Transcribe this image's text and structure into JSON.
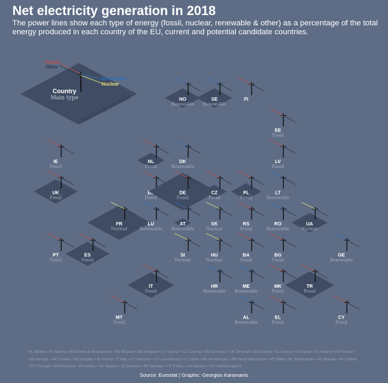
{
  "title": "Net electricity generation in 2018",
  "subtitle": "The power lines show each type of energy (fossil, nuclear, renewable & other) as a percentage of the total energy produced in each country of the EU, current and potential candidate countries.",
  "colors": {
    "background": "#5e6c85",
    "diamond": "#3f4c63",
    "fossil": "#c0504d",
    "other": "#2e3b4e",
    "renewable": "#2f6fb6",
    "nuclear": "#e6e07a",
    "text": "#ffffff",
    "muted": "#a7b1c2"
  },
  "legend": {
    "fossil": "Fossil",
    "other": "Other",
    "renewable": "Renewable",
    "nuclear": "Nuclear",
    "country": "Country",
    "main_type": "Main type",
    "total": "Total energy produced"
  },
  "chart_data": {
    "type": "scatter",
    "title": "Net electricity generation in 2018",
    "series": [
      "Fossil",
      "Nuclear",
      "Renewable",
      "Other"
    ],
    "countries": [
      {
        "code": "NO",
        "main": "Renewable",
        "col": 5,
        "row": 0,
        "size": 1.3
      },
      {
        "code": "SE",
        "main": "Renewable",
        "col": 6,
        "row": 0,
        "size": 1.3
      },
      {
        "code": "FI",
        "main": "",
        "col": 7,
        "row": 0,
        "size": 0
      },
      {
        "code": "EE",
        "main": "Fossil",
        "col": 8,
        "row": 1,
        "size": 0
      },
      {
        "code": "IE",
        "main": "Fossil",
        "col": 1,
        "row": 2,
        "size": 0
      },
      {
        "code": "NL",
        "main": "Fossil",
        "col": 4,
        "row": 2,
        "size": 1.0
      },
      {
        "code": "DK",
        "main": "Renewable",
        "col": 5,
        "row": 2,
        "size": 0
      },
      {
        "code": "LV",
        "main": "Fossil",
        "col": 8,
        "row": 2,
        "size": 0
      },
      {
        "code": "UK",
        "main": "Fossil",
        "col": 1,
        "row": 3,
        "size": 1.6
      },
      {
        "code": "BE",
        "main": "Fossil",
        "col": 4,
        "row": 3,
        "size": 0
      },
      {
        "code": "DE",
        "main": "Fossil",
        "col": 5,
        "row": 3,
        "size": 2.5
      },
      {
        "code": "CZ",
        "main": "Fossil",
        "col": 6,
        "row": 3,
        "size": 0.9
      },
      {
        "code": "PL",
        "main": "Fossil",
        "col": 7,
        "row": 3,
        "size": 1.1
      },
      {
        "code": "LT",
        "main": "Renewable",
        "col": 8,
        "row": 3,
        "size": 0
      },
      {
        "code": "FR",
        "main": "Nuclear",
        "col": 3,
        "row": 4,
        "size": 2.3
      },
      {
        "code": "LU",
        "main": "Renewable",
        "col": 4,
        "row": 4,
        "size": 0
      },
      {
        "code": "AT",
        "main": "Renewable",
        "col": 5,
        "row": 4,
        "size": 0.6
      },
      {
        "code": "SK",
        "main": "Nuclear",
        "col": 6,
        "row": 4,
        "size": 0
      },
      {
        "code": "RS",
        "main": "Fossil",
        "col": 7,
        "row": 4,
        "size": 0
      },
      {
        "code": "RO",
        "main": "Renewable",
        "col": 8,
        "row": 4,
        "size": 0
      },
      {
        "code": "UA",
        "main": "Nuclear",
        "col": 9,
        "row": 4,
        "size": 1.3
      },
      {
        "code": "PT",
        "main": "Fossil",
        "col": 1,
        "row": 5,
        "size": 0
      },
      {
        "code": "ES",
        "main": "Fossil",
        "col": 2,
        "row": 5,
        "size": 1.6
      },
      {
        "code": "SI",
        "main": "Nuclear",
        "col": 5,
        "row": 5,
        "size": 0
      },
      {
        "code": "HU",
        "main": "Nuclear",
        "col": 6,
        "row": 5,
        "size": 0
      },
      {
        "code": "BA",
        "main": "Fossil",
        "col": 7,
        "row": 5,
        "size": 0
      },
      {
        "code": "BG",
        "main": "Fossil",
        "col": 8,
        "row": 5,
        "size": 0
      },
      {
        "code": "GE",
        "main": "Renewable",
        "col": 10,
        "row": 5,
        "size": 0
      },
      {
        "code": "IT",
        "main": "Fossil",
        "col": 4,
        "row": 6,
        "size": 1.7
      },
      {
        "code": "HR",
        "main": "Renewable",
        "col": 6,
        "row": 6,
        "size": 0
      },
      {
        "code": "ME",
        "main": "Renewable",
        "col": 7,
        "row": 6,
        "size": 0
      },
      {
        "code": "MK",
        "main": "Fossil",
        "col": 8,
        "row": 6,
        "size": 0
      },
      {
        "code": "TR",
        "main": "Fossil",
        "col": 9,
        "row": 6,
        "size": 1.8
      },
      {
        "code": "MT",
        "main": "Fossil",
        "col": 3,
        "row": 7,
        "size": 0
      },
      {
        "code": "AL",
        "main": "Renewable",
        "col": 7,
        "row": 7,
        "size": 0
      },
      {
        "code": "EL",
        "main": "Fossil",
        "col": 8,
        "row": 7,
        "size": 0
      },
      {
        "code": "CY",
        "main": "Fossil",
        "col": 10,
        "row": 7,
        "size": 0
      }
    ]
  },
  "abbreviations": "AL Albania • AT Austria • BA Bosnia & Herzegovina • BE Belgium • BG Bulgaria • CY Cyprus • CZ Czechia • DE Germany • DK Denmark • EE Estonia • EL Greece • ES Spain • FI Finland • FR France • GE Georgia • HR Croatia • HU Hungary • IE Ireland • IT Italy • LT Lithuania • LU Luxembourg • LV Latvia • ME Montenegro • MK North Macedonia • MT Malta • NL Netherlands • NO Norway • PL Poland • PT Portugal • RO Romania • RS Serbia • SE Sweden • SI Slovenia • SK Slovakia • TR Turkey • UA Ukraine • UK United Kingdom",
  "source": "Source: Eurostat | Graphic: Georgios Karamanis"
}
